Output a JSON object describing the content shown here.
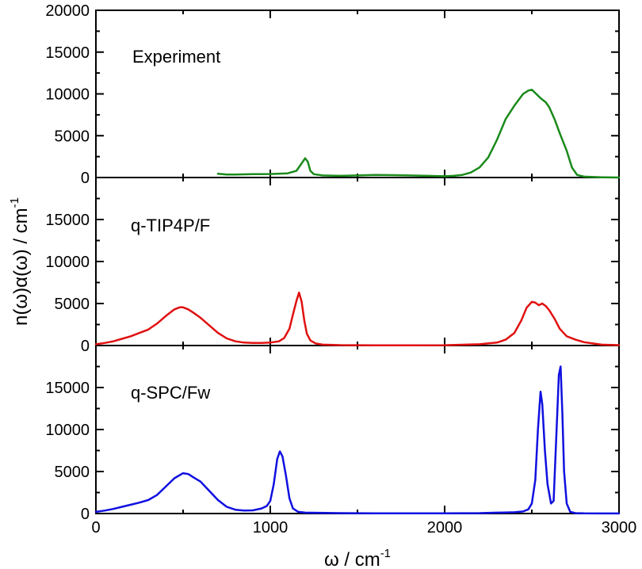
{
  "chart_data": {
    "type": "line",
    "layout": "three vertically stacked panels sharing the x axis",
    "xlabel": {
      "main": "ω / cm",
      "superscript": "-1"
    },
    "ylabel": {
      "main": "n(ω)α(ω) / cm",
      "superscript": "-1"
    },
    "xlim": [
      0,
      3000
    ],
    "xticks": [
      "0",
      "1000",
      "2000",
      "3000"
    ],
    "panels": [
      {
        "name": "Experiment",
        "color": "#1a8a1a",
        "ylim": [
          0,
          20000
        ],
        "yticks": [
          "0",
          "5000",
          "10000",
          "15000",
          "20000"
        ],
        "x": [
          700,
          750,
          800,
          900,
          1000,
          1100,
          1150,
          1180,
          1200,
          1215,
          1230,
          1250,
          1300,
          1400,
          1500,
          1600,
          1700,
          1800,
          1900,
          2000,
          2050,
          2100,
          2150,
          2200,
          2250,
          2300,
          2350,
          2400,
          2450,
          2480,
          2500,
          2520,
          2550,
          2580,
          2600,
          2630,
          2660,
          2700,
          2730,
          2760,
          2800,
          2900,
          3000
        ],
        "y": [
          450,
          350,
          350,
          400,
          420,
          500,
          800,
          1700,
          2300,
          1900,
          800,
          400,
          250,
          200,
          250,
          300,
          280,
          250,
          200,
          150,
          200,
          300,
          600,
          1200,
          2400,
          4500,
          7000,
          8600,
          10000,
          10400,
          10500,
          10100,
          9500,
          9000,
          8400,
          7000,
          5300,
          3200,
          1200,
          300,
          100,
          30,
          0
        ]
      },
      {
        "name": "q-TIP4P/F",
        "color": "#e01010",
        "ylim": [
          0,
          20000
        ],
        "yticks": [
          "0",
          "5000",
          "10000",
          "15000"
        ],
        "x": [
          0,
          50,
          100,
          150,
          200,
          250,
          300,
          350,
          400,
          450,
          480,
          500,
          530,
          560,
          600,
          650,
          700,
          750,
          800,
          850,
          900,
          950,
          1000,
          1050,
          1080,
          1110,
          1130,
          1150,
          1165,
          1180,
          1195,
          1210,
          1230,
          1260,
          1300,
          1400,
          1600,
          1800,
          2000,
          2200,
          2300,
          2350,
          2400,
          2440,
          2470,
          2500,
          2520,
          2540,
          2560,
          2580,
          2600,
          2630,
          2660,
          2700,
          2750,
          2800,
          2850,
          2900,
          3000
        ],
        "y": [
          150,
          300,
          500,
          800,
          1100,
          1500,
          1900,
          2600,
          3500,
          4300,
          4550,
          4550,
          4300,
          3900,
          3300,
          2400,
          1500,
          850,
          500,
          350,
          300,
          300,
          350,
          500,
          900,
          2000,
          3700,
          5300,
          6300,
          5200,
          3000,
          1400,
          600,
          250,
          100,
          50,
          30,
          30,
          40,
          150,
          350,
          700,
          1500,
          3000,
          4500,
          5200,
          5100,
          4800,
          5000,
          4700,
          4200,
          3200,
          2000,
          1100,
          700,
          400,
          250,
          100,
          50
        ]
      },
      {
        "name": "q-SPC/Fw",
        "color": "#1010e0",
        "ylim": [
          0,
          20000
        ],
        "yticks": [
          "0",
          "5000",
          "10000",
          "15000"
        ],
        "x": [
          0,
          50,
          100,
          150,
          200,
          250,
          300,
          350,
          400,
          450,
          500,
          530,
          560,
          600,
          650,
          700,
          750,
          800,
          850,
          900,
          950,
          980,
          1000,
          1020,
          1040,
          1055,
          1070,
          1090,
          1110,
          1130,
          1160,
          1200,
          1400,
          1600,
          1800,
          2000,
          2200,
          2300,
          2400,
          2450,
          2480,
          2500,
          2520,
          2535,
          2550,
          2560,
          2575,
          2590,
          2610,
          2625,
          2640,
          2655,
          2665,
          2675,
          2685,
          2700,
          2720,
          2750,
          2800,
          2900,
          3000
        ],
        "y": [
          200,
          350,
          550,
          800,
          1050,
          1300,
          1600,
          2200,
          3200,
          4200,
          4800,
          4700,
          4300,
          3800,
          2700,
          1600,
          800,
          450,
          350,
          380,
          600,
          900,
          1500,
          3500,
          6500,
          7400,
          6800,
          4500,
          1800,
          600,
          200,
          100,
          50,
          30,
          30,
          30,
          50,
          100,
          150,
          250,
          500,
          1200,
          4000,
          10000,
          14500,
          13000,
          7500,
          3500,
          1200,
          1500,
          9000,
          16500,
          17500,
          12000,
          5000,
          1200,
          200,
          50,
          20,
          10,
          10
        ]
      }
    ]
  }
}
